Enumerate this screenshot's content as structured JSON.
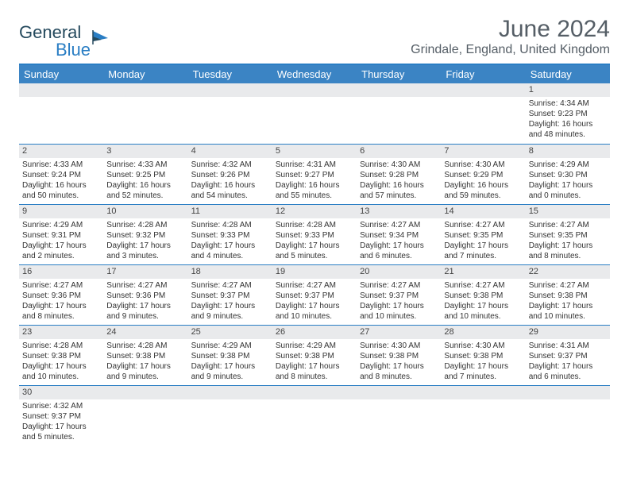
{
  "brand": {
    "name1": "General",
    "name2": "Blue"
  },
  "title": "June 2024",
  "location": "Grindale, England, United Kingdom",
  "colors": {
    "header_bg": "#3b84c4",
    "rule": "#2a7ec4",
    "daynum_bg": "#e9eaec",
    "text": "#333333",
    "title_text": "#555e66"
  },
  "daynames": [
    "Sunday",
    "Monday",
    "Tuesday",
    "Wednesday",
    "Thursday",
    "Friday",
    "Saturday"
  ],
  "weeks": [
    [
      null,
      null,
      null,
      null,
      null,
      null,
      {
        "n": "1",
        "sr": "4:34 AM",
        "ss": "9:23 PM",
        "dl": "16 hours and 48 minutes."
      }
    ],
    [
      {
        "n": "2",
        "sr": "4:33 AM",
        "ss": "9:24 PM",
        "dl": "16 hours and 50 minutes."
      },
      {
        "n": "3",
        "sr": "4:33 AM",
        "ss": "9:25 PM",
        "dl": "16 hours and 52 minutes."
      },
      {
        "n": "4",
        "sr": "4:32 AM",
        "ss": "9:26 PM",
        "dl": "16 hours and 54 minutes."
      },
      {
        "n": "5",
        "sr": "4:31 AM",
        "ss": "9:27 PM",
        "dl": "16 hours and 55 minutes."
      },
      {
        "n": "6",
        "sr": "4:30 AM",
        "ss": "9:28 PM",
        "dl": "16 hours and 57 minutes."
      },
      {
        "n": "7",
        "sr": "4:30 AM",
        "ss": "9:29 PM",
        "dl": "16 hours and 59 minutes."
      },
      {
        "n": "8",
        "sr": "4:29 AM",
        "ss": "9:30 PM",
        "dl": "17 hours and 0 minutes."
      }
    ],
    [
      {
        "n": "9",
        "sr": "4:29 AM",
        "ss": "9:31 PM",
        "dl": "17 hours and 2 minutes."
      },
      {
        "n": "10",
        "sr": "4:28 AM",
        "ss": "9:32 PM",
        "dl": "17 hours and 3 minutes."
      },
      {
        "n": "11",
        "sr": "4:28 AM",
        "ss": "9:33 PM",
        "dl": "17 hours and 4 minutes."
      },
      {
        "n": "12",
        "sr": "4:28 AM",
        "ss": "9:33 PM",
        "dl": "17 hours and 5 minutes."
      },
      {
        "n": "13",
        "sr": "4:27 AM",
        "ss": "9:34 PM",
        "dl": "17 hours and 6 minutes."
      },
      {
        "n": "14",
        "sr": "4:27 AM",
        "ss": "9:35 PM",
        "dl": "17 hours and 7 minutes."
      },
      {
        "n": "15",
        "sr": "4:27 AM",
        "ss": "9:35 PM",
        "dl": "17 hours and 8 minutes."
      }
    ],
    [
      {
        "n": "16",
        "sr": "4:27 AM",
        "ss": "9:36 PM",
        "dl": "17 hours and 8 minutes."
      },
      {
        "n": "17",
        "sr": "4:27 AM",
        "ss": "9:36 PM",
        "dl": "17 hours and 9 minutes."
      },
      {
        "n": "18",
        "sr": "4:27 AM",
        "ss": "9:37 PM",
        "dl": "17 hours and 9 minutes."
      },
      {
        "n": "19",
        "sr": "4:27 AM",
        "ss": "9:37 PM",
        "dl": "17 hours and 10 minutes."
      },
      {
        "n": "20",
        "sr": "4:27 AM",
        "ss": "9:37 PM",
        "dl": "17 hours and 10 minutes."
      },
      {
        "n": "21",
        "sr": "4:27 AM",
        "ss": "9:38 PM",
        "dl": "17 hours and 10 minutes."
      },
      {
        "n": "22",
        "sr": "4:27 AM",
        "ss": "9:38 PM",
        "dl": "17 hours and 10 minutes."
      }
    ],
    [
      {
        "n": "23",
        "sr": "4:28 AM",
        "ss": "9:38 PM",
        "dl": "17 hours and 10 minutes."
      },
      {
        "n": "24",
        "sr": "4:28 AM",
        "ss": "9:38 PM",
        "dl": "17 hours and 9 minutes."
      },
      {
        "n": "25",
        "sr": "4:29 AM",
        "ss": "9:38 PM",
        "dl": "17 hours and 9 minutes."
      },
      {
        "n": "26",
        "sr": "4:29 AM",
        "ss": "9:38 PM",
        "dl": "17 hours and 8 minutes."
      },
      {
        "n": "27",
        "sr": "4:30 AM",
        "ss": "9:38 PM",
        "dl": "17 hours and 8 minutes."
      },
      {
        "n": "28",
        "sr": "4:30 AM",
        "ss": "9:38 PM",
        "dl": "17 hours and 7 minutes."
      },
      {
        "n": "29",
        "sr": "4:31 AM",
        "ss": "9:37 PM",
        "dl": "17 hours and 6 minutes."
      }
    ],
    [
      {
        "n": "30",
        "sr": "4:32 AM",
        "ss": "9:37 PM",
        "dl": "17 hours and 5 minutes."
      },
      null,
      null,
      null,
      null,
      null,
      null
    ]
  ],
  "labels": {
    "sunrise": "Sunrise: ",
    "sunset": "Sunset: ",
    "daylight": "Daylight: "
  }
}
